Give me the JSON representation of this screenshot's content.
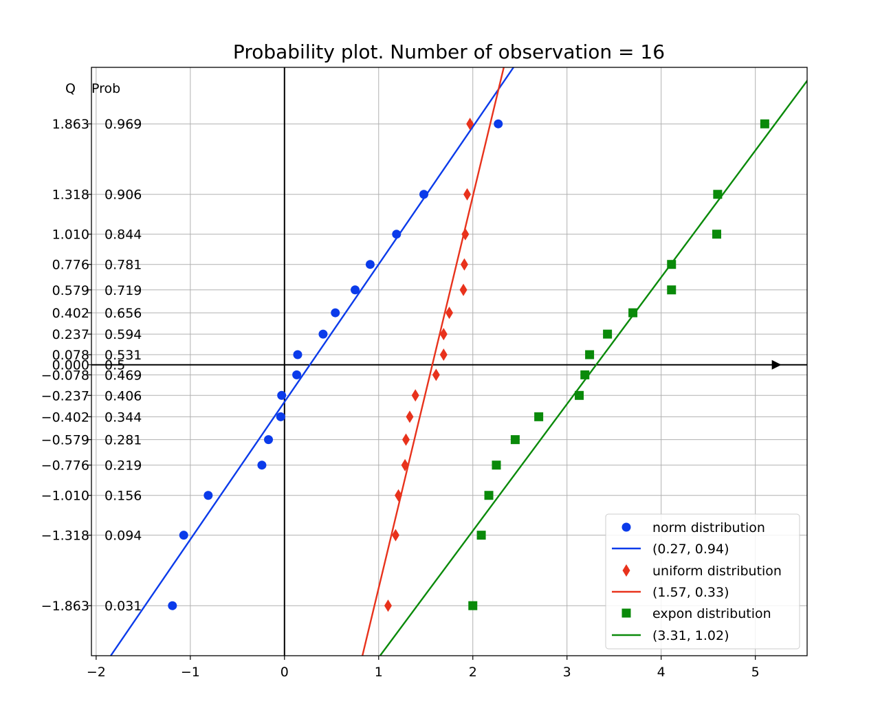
{
  "chart_data": {
    "type": "scatter",
    "title": "Probability plot. Number of observation = 16",
    "xlabel": "",
    "ylabel": "",
    "xlim": [
      -2.05,
      5.55
    ],
    "ylim": [
      -2.25,
      2.3
    ],
    "grid": true,
    "legend_position": "bottom-right",
    "xticks": [
      -2,
      -1,
      0,
      1,
      2,
      3,
      4,
      5
    ],
    "xtick_labels": [
      "−2",
      "−1",
      "0",
      "1",
      "2",
      "3",
      "4",
      "5"
    ],
    "yaxis_headers": {
      "q": "Q",
      "prob": "Prob"
    },
    "yticks": [
      1.863,
      1.318,
      1.01,
      0.776,
      0.579,
      0.402,
      0.237,
      0.078,
      0.0,
      -0.078,
      -0.237,
      -0.402,
      -0.579,
      -0.776,
      -1.01,
      -1.318,
      -1.863
    ],
    "q_labels": [
      "1.863",
      "1.318",
      "1.010",
      "0.776",
      "0.579",
      "0.402",
      "0.237",
      "0.078",
      "0.000",
      "−0.078",
      "−0.237",
      "−0.402",
      "−0.579",
      "−0.776",
      "−1.010",
      "−1.318",
      "−1.863"
    ],
    "prob_labels": [
      "0.969",
      "0.906",
      "0.844",
      "0.781",
      "0.719",
      "0.656",
      "0.594",
      "0.531",
      "0.5",
      "0.469",
      "0.406",
      "0.344",
      "0.281",
      "0.219",
      "0.156",
      "0.094",
      "0.031"
    ],
    "series": [
      {
        "name": "norm distribution",
        "marker": "circle",
        "color": "#0b3bea",
        "points": [
          [
            -1.19,
            -1.863
          ],
          [
            -1.07,
            -1.318
          ],
          [
            -0.81,
            -1.01
          ],
          [
            -0.24,
            -0.776
          ],
          [
            -0.17,
            -0.579
          ],
          [
            -0.04,
            -0.402
          ],
          [
            -0.03,
            -0.237
          ],
          [
            0.13,
            -0.078
          ],
          [
            0.14,
            0.078
          ],
          [
            0.41,
            0.237
          ],
          [
            0.54,
            0.402
          ],
          [
            0.75,
            0.579
          ],
          [
            0.91,
            0.776
          ],
          [
            1.19,
            1.01
          ],
          [
            1.48,
            1.318
          ],
          [
            2.27,
            1.863
          ]
        ],
        "fit_name": "(0.27, 0.94)",
        "fit": {
          "mean": 0.27,
          "scale": 0.94
        }
      },
      {
        "name": "uniform distribution",
        "marker": "diamond",
        "color": "#e8321c",
        "points": [
          [
            1.1,
            -1.863
          ],
          [
            1.18,
            -1.318
          ],
          [
            1.21,
            -1.01
          ],
          [
            1.28,
            -0.776
          ],
          [
            1.29,
            -0.579
          ],
          [
            1.33,
            -0.402
          ],
          [
            1.39,
            -0.237
          ],
          [
            1.61,
            -0.078
          ],
          [
            1.69,
            0.078
          ],
          [
            1.69,
            0.237
          ],
          [
            1.75,
            0.402
          ],
          [
            1.9,
            0.579
          ],
          [
            1.91,
            0.776
          ],
          [
            1.92,
            1.01
          ],
          [
            1.94,
            1.318
          ],
          [
            1.97,
            1.863
          ]
        ],
        "fit_name": "(1.57, 0.33)",
        "fit": {
          "mean": 1.57,
          "scale": 0.33
        }
      },
      {
        "name": "expon distribution",
        "marker": "square",
        "color": "#0a8a0a",
        "points": [
          [
            2.0,
            -1.863
          ],
          [
            2.09,
            -1.318
          ],
          [
            2.17,
            -1.01
          ],
          [
            2.25,
            -0.776
          ],
          [
            2.45,
            -0.579
          ],
          [
            2.7,
            -0.402
          ],
          [
            3.13,
            -0.237
          ],
          [
            3.19,
            -0.078
          ],
          [
            3.24,
            0.078
          ],
          [
            3.43,
            0.237
          ],
          [
            3.7,
            0.402
          ],
          [
            4.11,
            0.579
          ],
          [
            4.11,
            0.776
          ],
          [
            4.59,
            1.01
          ],
          [
            4.6,
            1.318
          ],
          [
            5.1,
            1.863
          ]
        ],
        "fit_name": "(3.31, 1.02)",
        "fit": {
          "mean": 3.31,
          "scale": 1.02
        }
      }
    ]
  }
}
